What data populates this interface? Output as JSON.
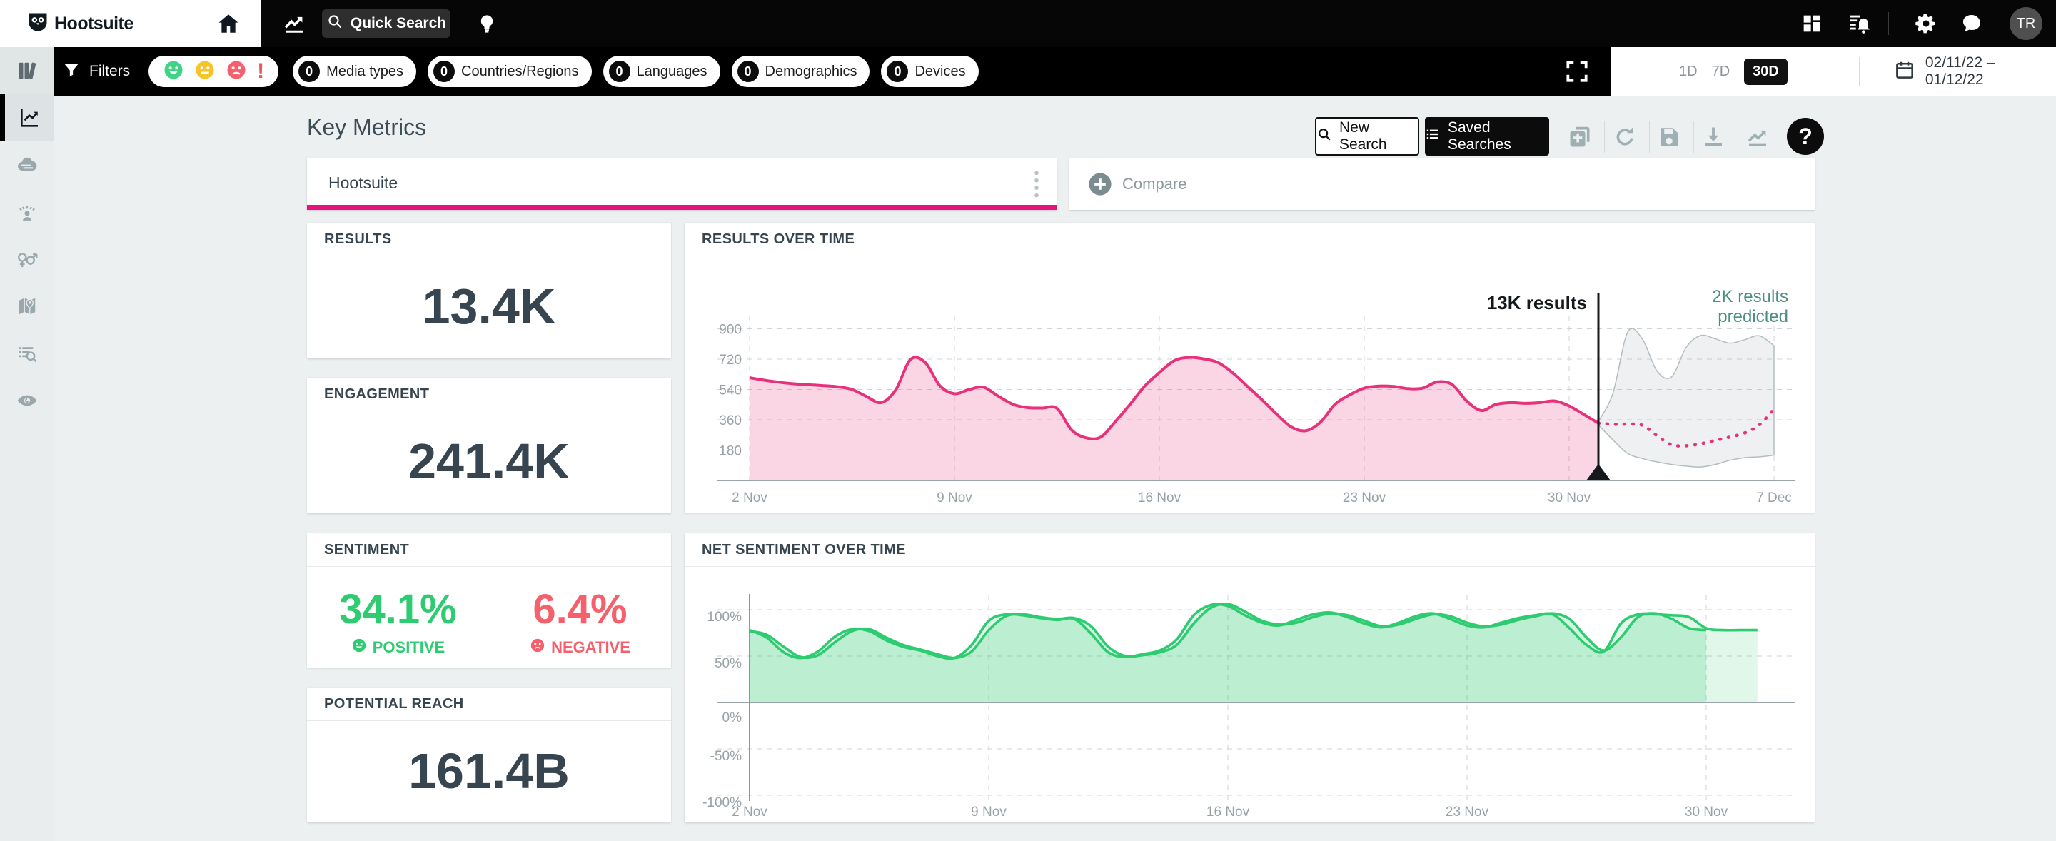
{
  "topnav": {
    "brand": "Hootsuite",
    "quick_search": "Quick Search",
    "avatar_initials": "TR"
  },
  "filter_bar": {
    "filters_label": "Filters",
    "pills": [
      {
        "count": "0",
        "label": "Media types"
      },
      {
        "count": "0",
        "label": "Countries/Regions"
      },
      {
        "count": "0",
        "label": "Languages"
      },
      {
        "count": "0",
        "label": "Demographics"
      },
      {
        "count": "0",
        "label": "Devices"
      }
    ]
  },
  "time_bar": {
    "ranges": [
      {
        "label": "1D",
        "active": false
      },
      {
        "label": "7D",
        "active": false
      },
      {
        "label": "30D",
        "active": true
      }
    ],
    "date_range": "02/11/22 – 01/12/22"
  },
  "toolbar": {
    "title": "Key Metrics",
    "new_search": "New Search",
    "saved_searches": "Saved Searches",
    "help": "?"
  },
  "tabs": {
    "search_name": "Hootsuite",
    "compare_label": "Compare"
  },
  "metrics": {
    "results": {
      "label": "RESULTS",
      "value": "13.4K"
    },
    "engagement": {
      "label": "ENGAGEMENT",
      "value": "241.4K"
    },
    "sentiment": {
      "label": "SENTIMENT",
      "positive_value": "34.1%",
      "positive_label": "POSITIVE",
      "negative_value": "6.4%",
      "negative_label": "NEGATIVE"
    },
    "reach": {
      "label": "POTENTIAL REACH",
      "value": "161.4B"
    }
  },
  "colors": {
    "accent_pink": "#e6127d",
    "line_pink": "#e8317b",
    "positive_green": "#2ecc71",
    "negative_red": "#f4606c",
    "teal_annotation": "#4b8e84"
  },
  "chart_data": [
    {
      "type": "area",
      "title": "RESULTS OVER TIME",
      "x_ticks": [
        "2 Nov",
        "9 Nov",
        "16 Nov",
        "23 Nov",
        "30 Nov",
        "7 Dec"
      ],
      "x_tick_days": [
        0,
        7,
        14,
        21,
        28,
        35
      ],
      "y_ticks": [
        180,
        360,
        540,
        720,
        900
      ],
      "ylim": [
        0,
        1110
      ],
      "step_days": 0.5,
      "grid": true,
      "annotations": {
        "current": "13K results",
        "predicted_lines": [
          "2K results",
          "predicted"
        ],
        "marker_day": 29
      },
      "series": [
        {
          "name": "results",
          "color": "#e8317b",
          "start_day": 0,
          "values": [
            610,
            595,
            583,
            574,
            568,
            563,
            556,
            540,
            498,
            462,
            540,
            718,
            700,
            562,
            515,
            540,
            553,
            500,
            452,
            432,
            430,
            428,
            300,
            253,
            258,
            350,
            452,
            560,
            640,
            710,
            730,
            722,
            700,
            640,
            560,
            480,
            395,
            318,
            295,
            345,
            452,
            508,
            548,
            560,
            558,
            545,
            548,
            585,
            570,
            472,
            415,
            452,
            462,
            458,
            462,
            472,
            442,
            392,
            340
          ]
        },
        {
          "name": "predicted",
          "color": "#e8317b",
          "style": "dotted",
          "start_day": 29,
          "values": [
            340,
            333,
            334,
            328,
            266,
            212,
            206,
            218,
            238,
            258,
            282,
            330,
            425
          ]
        },
        {
          "name": "prediction_upper",
          "start_day": 29,
          "values": [
            350,
            520,
            880,
            840,
            650,
            615,
            790,
            860,
            840,
            815,
            835,
            858,
            800
          ]
        },
        {
          "name": "prediction_lower",
          "start_day": 29,
          "values": [
            330,
            240,
            160,
            130,
            110,
            95,
            85,
            80,
            95,
            120,
            135,
            140,
            150
          ]
        }
      ]
    },
    {
      "type": "area",
      "title": "NET SENTIMENT OVER TIME",
      "x_ticks": [
        "2 Nov",
        "9 Nov",
        "16 Nov",
        "23 Nov",
        "30 Nov"
      ],
      "x_tick_days": [
        0,
        7,
        14,
        21,
        28
      ],
      "y_ticks": [
        "100%",
        "50%",
        "0%",
        "-50%",
        "-100%"
      ],
      "y_tick_values": [
        100,
        50,
        0,
        -50,
        -100
      ],
      "ylim": [
        -100,
        115
      ],
      "step_days": 0.5,
      "grid": true,
      "series": [
        {
          "name": "net_sentiment",
          "color": "#2ecc71",
          "start_day": 0,
          "values": [
            78,
            70,
            54,
            48,
            55,
            71,
            79,
            77,
            67,
            60,
            56,
            50,
            48,
            62,
            88,
            95,
            94,
            91,
            89,
            90,
            74,
            54,
            49,
            52,
            56,
            68,
            94,
            105,
            104,
            94,
            86,
            83,
            89,
            95,
            97,
            92,
            85,
            81,
            86,
            93,
            96,
            90,
            83,
            81,
            86,
            91,
            94,
            95,
            80,
            62,
            55,
            85,
            95,
            95,
            94,
            92,
            80,
            78,
            78,
            78
          ]
        },
        {
          "name": "net_sentiment_secondary",
          "color": "#2ecc71",
          "start_day": 0,
          "values": [
            77,
            73,
            60,
            49,
            51,
            65,
            77,
            79,
            70,
            62,
            57,
            52,
            48,
            55,
            78,
            93,
            95,
            92,
            90,
            91,
            82,
            60,
            50,
            51,
            54,
            62,
            85,
            102,
            106,
            98,
            88,
            84,
            86,
            92,
            96,
            94,
            88,
            82,
            84,
            90,
            95,
            93,
            86,
            82,
            84,
            89,
            93,
            96,
            90,
            70,
            56,
            70,
            92,
            96,
            90,
            80,
            78
          ]
        }
      ]
    }
  ]
}
